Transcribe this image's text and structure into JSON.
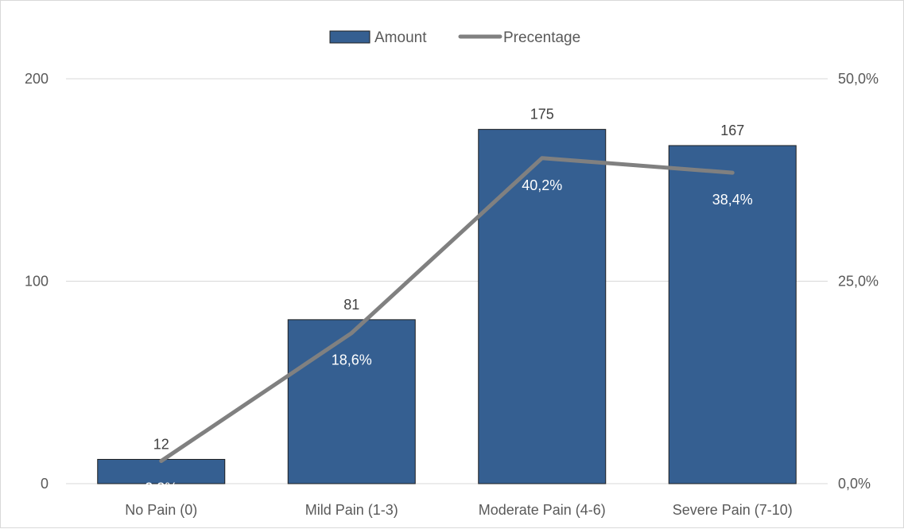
{
  "chart_data": {
    "type": "bar",
    "categories": [
      "No Pain (0)",
      "Mild Pain (1-3)",
      "Moderate Pain (4-6)",
      "Severe Pain (7-10)"
    ],
    "series": [
      {
        "name": "Amount",
        "type": "bar",
        "axis": "left",
        "values": [
          12,
          81,
          175,
          167
        ],
        "labels": [
          "12",
          "81",
          "175",
          "167"
        ],
        "color": "#355f91"
      },
      {
        "name": "Precentage",
        "type": "line",
        "axis": "right",
        "values": [
          2.8,
          18.6,
          40.2,
          38.4
        ],
        "labels": [
          "2,8%",
          "18,6%",
          "40,2%",
          "38,4%"
        ],
        "color": "#808080"
      }
    ],
    "y_left": {
      "ylim": [
        0,
        200
      ],
      "ticks": [
        "0",
        "100",
        "200"
      ]
    },
    "y_right": {
      "ylim": [
        0,
        50
      ],
      "ticks": [
        "0,0%",
        "25,0%",
        "50,0%"
      ]
    },
    "grid": true,
    "legend_position": "top-center"
  }
}
